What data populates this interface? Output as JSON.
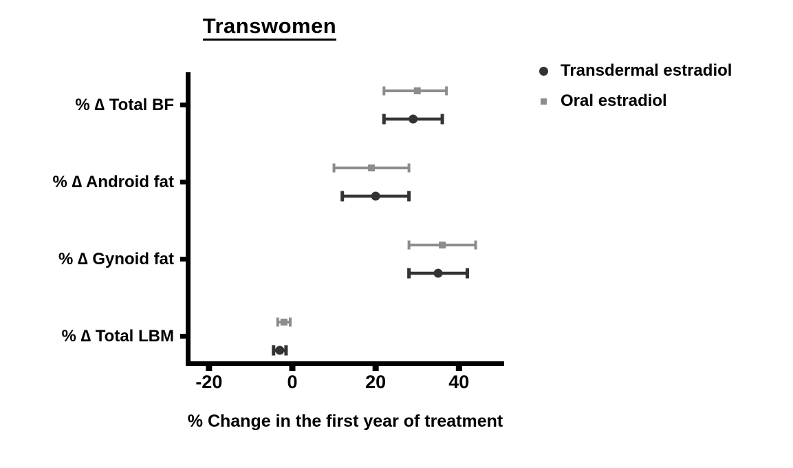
{
  "title": "Transwomen",
  "chart_data": {
    "type": "scatter",
    "subtype": "dot-and-error-forest",
    "title": "Transwomen",
    "xlabel": "% Change in the first year of treatment",
    "ylabel": "",
    "categories": [
      "% ∆ Total BF",
      "% ∆ Android fat",
      "% ∆ Gynoid fat",
      "% ∆ Total LBM"
    ],
    "x_ticks": [
      -20,
      0,
      20,
      40
    ],
    "xlim": [
      -26,
      51
    ],
    "grid": false,
    "legend_position": "top-right",
    "axis_color": "#000000",
    "series": [
      {
        "name": "Transdermal estradiol",
        "marker": "circle",
        "color": "#333333",
        "points": [
          {
            "category": "% ∆ Total BF",
            "mean": 29,
            "low": 22,
            "high": 36
          },
          {
            "category": "% ∆ Android fat",
            "mean": 20,
            "low": 12,
            "high": 28
          },
          {
            "category": "% ∆ Gynoid fat",
            "mean": 35,
            "low": 28,
            "high": 42
          },
          {
            "category": "% ∆ Total LBM",
            "mean": -3,
            "low": -4.5,
            "high": -1.5
          }
        ]
      },
      {
        "name": "Oral estradiol",
        "marker": "square",
        "color": "#8c8c8c",
        "points": [
          {
            "category": "% ∆ Total BF",
            "mean": 30,
            "low": 22,
            "high": 37
          },
          {
            "category": "% ∆ Android fat",
            "mean": 19,
            "low": 10,
            "high": 28
          },
          {
            "category": "% ∆ Gynoid fat",
            "mean": 36,
            "low": 28,
            "high": 44
          },
          {
            "category": "% ∆ Total LBM",
            "mean": -2,
            "low": -3.5,
            "high": -0.5
          }
        ]
      }
    ]
  }
}
